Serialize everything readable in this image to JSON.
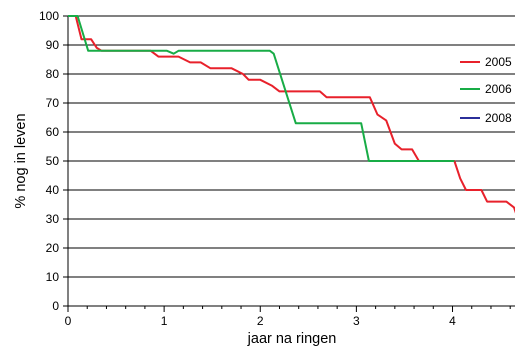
{
  "chart_data": {
    "type": "line",
    "title": "",
    "xlabel": "jaar na ringen",
    "ylabel": "% nog in leven",
    "xlim": [
      0,
      4.65
    ],
    "ylim": [
      0,
      100
    ],
    "x_ticks": [
      0,
      1,
      2,
      3,
      4
    ],
    "y_ticks": [
      0,
      10,
      20,
      30,
      40,
      50,
      60,
      70,
      80,
      90,
      100
    ],
    "grid": "horizontal",
    "legend": "right",
    "series": [
      {
        "name": "2005",
        "color": "#e8212b",
        "points": [
          [
            0,
            100
          ],
          [
            0.08,
            100
          ],
          [
            0.14,
            92
          ],
          [
            0.24,
            92
          ],
          [
            0.3,
            89
          ],
          [
            0.35,
            88
          ],
          [
            0.86,
            88
          ],
          [
            0.94,
            86
          ],
          [
            1.15,
            86
          ],
          [
            1.27,
            84
          ],
          [
            1.38,
            84
          ],
          [
            1.48,
            82
          ],
          [
            1.7,
            82
          ],
          [
            1.82,
            80
          ],
          [
            1.88,
            78
          ],
          [
            2.0,
            78
          ],
          [
            2.12,
            76
          ],
          [
            2.2,
            74
          ],
          [
            2.62,
            74
          ],
          [
            2.69,
            72
          ],
          [
            3.14,
            72
          ],
          [
            3.22,
            66
          ],
          [
            3.31,
            64
          ],
          [
            3.4,
            56
          ],
          [
            3.47,
            54
          ],
          [
            3.58,
            54
          ],
          [
            3.65,
            50
          ],
          [
            4.02,
            50
          ],
          [
            4.08,
            44
          ],
          [
            4.14,
            40
          ],
          [
            4.3,
            40
          ],
          [
            4.36,
            36
          ],
          [
            4.56,
            36
          ],
          [
            4.64,
            34
          ],
          [
            4.68,
            30
          ]
        ]
      },
      {
        "name": "2006",
        "color": "#18ac46",
        "points": [
          [
            0,
            100
          ],
          [
            0.1,
            100
          ],
          [
            0.21,
            88
          ],
          [
            1.03,
            88
          ],
          [
            1.1,
            87
          ],
          [
            1.15,
            88
          ],
          [
            2.1,
            88
          ],
          [
            2.14,
            87
          ],
          [
            2.37,
            63
          ],
          [
            3.05,
            63
          ],
          [
            3.13,
            50
          ],
          [
            4.02,
            50
          ]
        ]
      },
      {
        "name": "2008",
        "color": "#2b2f9a",
        "points": []
      }
    ]
  }
}
